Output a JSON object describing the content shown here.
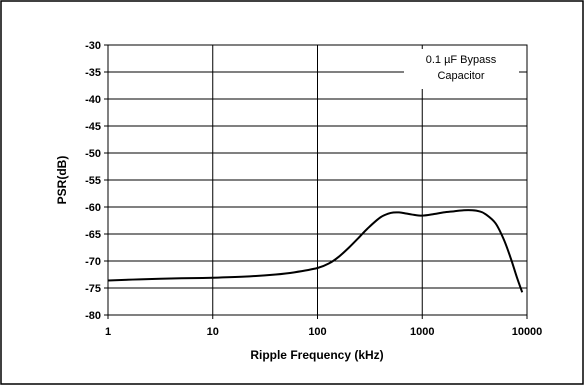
{
  "chart_data": {
    "type": "line",
    "title": "",
    "xlabel": "Ripple Frequency (kHz)",
    "ylabel": "PSR(dB)",
    "xscale": "log",
    "xlim": [
      1,
      10000
    ],
    "ylim": [
      -80,
      -30
    ],
    "x_ticks": [
      1,
      10,
      100,
      1000,
      10000
    ],
    "x_tick_labels": [
      "1",
      "10",
      "100",
      "1000",
      "10000"
    ],
    "y_ticks": [
      -30,
      -35,
      -40,
      -45,
      -50,
      -55,
      -60,
      -65,
      -70,
      -75,
      -80
    ],
    "y_tick_labels": [
      "-30",
      "-35",
      "-40",
      "-45",
      "-50",
      "-55",
      "-60",
      "-65",
      "-70",
      "-75",
      "-80"
    ],
    "grid": true,
    "annotation": [
      "0.1 µF Bypass",
      "Capacitor"
    ],
    "series": [
      {
        "x": [
          1,
          2,
          5,
          10,
          20,
          40,
          60,
          100,
          130,
          160,
          200,
          250,
          300,
          400,
          500,
          600,
          700,
          800,
          1000,
          1300,
          1600,
          2000,
          2500,
          3000,
          3500,
          4000,
          5000,
          6000,
          7000,
          8000,
          9000
        ],
        "y": [
          -73.6,
          -73.4,
          -73.2,
          -73.1,
          -72.9,
          -72.5,
          -72.1,
          -71.3,
          -70.4,
          -69.2,
          -67.5,
          -65.6,
          -64.0,
          -61.9,
          -61.1,
          -61.0,
          -61.2,
          -61.4,
          -61.6,
          -61.3,
          -61.0,
          -60.8,
          -60.6,
          -60.6,
          -60.8,
          -61.3,
          -63.0,
          -66.0,
          -69.5,
          -73.0,
          -75.8
        ]
      }
    ]
  }
}
